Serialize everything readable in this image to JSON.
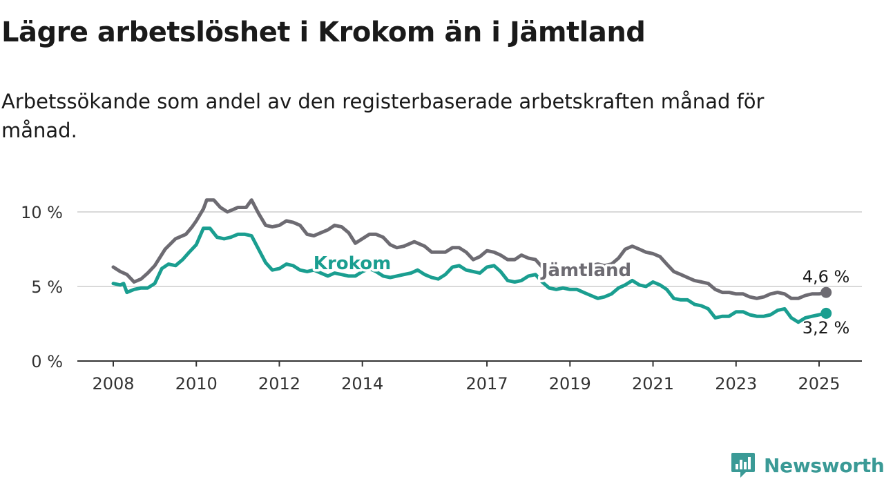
{
  "title": "Lägre arbetslöshet i Krokom än i Jämtland",
  "subtitle": "Arbetssökande som andel av den registerbaserade arbetskraften månad för månad.",
  "brand": "Newsworthy",
  "colors": {
    "krokom": "#1a9e90",
    "jamtland": "#6d6b72",
    "grid": "#d9d9d9",
    "axis": "#333333",
    "brand": "#3a9a96"
  },
  "chart_data": {
    "type": "line",
    "xlim": [
      2008,
      2025.6
    ],
    "ylim": [
      0,
      10
    ],
    "yticks": [
      {
        "value": 0,
        "label": "0 %"
      },
      {
        "value": 5,
        "label": "5 %"
      },
      {
        "value": 10,
        "label": "10 %"
      }
    ],
    "xticks": [
      {
        "value": 2008,
        "label": "2008"
      },
      {
        "value": 2010,
        "label": "2010"
      },
      {
        "value": 2012,
        "label": "2012"
      },
      {
        "value": 2014,
        "label": "2014"
      },
      {
        "value": 2017,
        "label": "2017"
      },
      {
        "value": 2019,
        "label": "2019"
      },
      {
        "value": 2021,
        "label": "2021"
      },
      {
        "value": 2023,
        "label": "2023"
      },
      {
        "value": 2025,
        "label": "2025"
      }
    ],
    "series": [
      {
        "name": "Jämtland",
        "key": "jamtland",
        "end_label": "4,6 %",
        "points": [
          [
            2008.0,
            6.3
          ],
          [
            2008.17,
            6.0
          ],
          [
            2008.33,
            5.8
          ],
          [
            2008.5,
            5.3
          ],
          [
            2008.67,
            5.5
          ],
          [
            2008.83,
            5.9
          ],
          [
            2009.0,
            6.4
          ],
          [
            2009.25,
            7.5
          ],
          [
            2009.5,
            8.2
          ],
          [
            2009.75,
            8.5
          ],
          [
            2009.9,
            9.0
          ],
          [
            2010.0,
            9.4
          ],
          [
            2010.17,
            10.2
          ],
          [
            2010.25,
            10.8
          ],
          [
            2010.42,
            10.8
          ],
          [
            2010.58,
            10.3
          ],
          [
            2010.75,
            10.0
          ],
          [
            2010.92,
            10.2
          ],
          [
            2011.0,
            10.3
          ],
          [
            2011.2,
            10.3
          ],
          [
            2011.33,
            10.8
          ],
          [
            2011.5,
            9.9
          ],
          [
            2011.67,
            9.1
          ],
          [
            2011.83,
            9.0
          ],
          [
            2012.0,
            9.1
          ],
          [
            2012.17,
            9.4
          ],
          [
            2012.33,
            9.3
          ],
          [
            2012.5,
            9.1
          ],
          [
            2012.67,
            8.5
          ],
          [
            2012.83,
            8.4
          ],
          [
            2013.0,
            8.6
          ],
          [
            2013.17,
            8.8
          ],
          [
            2013.33,
            9.1
          ],
          [
            2013.5,
            9.0
          ],
          [
            2013.67,
            8.6
          ],
          [
            2013.83,
            7.9
          ],
          [
            2014.0,
            8.2
          ],
          [
            2014.17,
            8.5
          ],
          [
            2014.33,
            8.5
          ],
          [
            2014.5,
            8.3
          ],
          [
            2014.67,
            7.8
          ],
          [
            2014.83,
            7.6
          ],
          [
            2015.0,
            7.7
          ],
          [
            2015.25,
            8.0
          ],
          [
            2015.5,
            7.7
          ],
          [
            2015.67,
            7.3
          ],
          [
            2015.83,
            7.3
          ],
          [
            2016.0,
            7.3
          ],
          [
            2016.17,
            7.6
          ],
          [
            2016.33,
            7.6
          ],
          [
            2016.5,
            7.3
          ],
          [
            2016.67,
            6.8
          ],
          [
            2016.83,
            7.0
          ],
          [
            2017.0,
            7.4
          ],
          [
            2017.17,
            7.3
          ],
          [
            2017.33,
            7.1
          ],
          [
            2017.5,
            6.8
          ],
          [
            2017.67,
            6.8
          ],
          [
            2017.83,
            7.1
          ],
          [
            2018.0,
            6.9
          ],
          [
            2018.17,
            6.8
          ],
          [
            2018.33,
            6.3
          ],
          [
            2018.5,
            6.2
          ],
          [
            2018.67,
            6.0
          ],
          [
            2018.83,
            6.0
          ],
          [
            2019.0,
            6.1
          ],
          [
            2019.17,
            6.2
          ],
          [
            2019.33,
            6.3
          ],
          [
            2019.5,
            6.4
          ],
          [
            2019.67,
            6.5
          ],
          [
            2019.83,
            6.4
          ],
          [
            2020.0,
            6.5
          ],
          [
            2020.17,
            6.9
          ],
          [
            2020.33,
            7.5
          ],
          [
            2020.5,
            7.7
          ],
          [
            2020.67,
            7.5
          ],
          [
            2020.83,
            7.3
          ],
          [
            2021.0,
            7.2
          ],
          [
            2021.17,
            7.0
          ],
          [
            2021.33,
            6.5
          ],
          [
            2021.5,
            6.0
          ],
          [
            2021.67,
            5.8
          ],
          [
            2021.83,
            5.6
          ],
          [
            2022.0,
            5.4
          ],
          [
            2022.17,
            5.3
          ],
          [
            2022.33,
            5.2
          ],
          [
            2022.5,
            4.8
          ],
          [
            2022.67,
            4.6
          ],
          [
            2022.83,
            4.6
          ],
          [
            2023.0,
            4.5
          ],
          [
            2023.17,
            4.5
          ],
          [
            2023.33,
            4.3
          ],
          [
            2023.5,
            4.2
          ],
          [
            2023.67,
            4.3
          ],
          [
            2023.83,
            4.5
          ],
          [
            2024.0,
            4.6
          ],
          [
            2024.17,
            4.5
          ],
          [
            2024.33,
            4.2
          ],
          [
            2024.5,
            4.2
          ],
          [
            2024.67,
            4.4
          ],
          [
            2024.83,
            4.5
          ],
          [
            2025.0,
            4.5
          ],
          [
            2025.17,
            4.6
          ]
        ]
      },
      {
        "name": "Krokom",
        "key": "krokom",
        "end_label": "3,2 %",
        "points": [
          [
            2008.0,
            5.2
          ],
          [
            2008.17,
            5.1
          ],
          [
            2008.25,
            5.2
          ],
          [
            2008.33,
            4.6
          ],
          [
            2008.5,
            4.8
          ],
          [
            2008.67,
            4.9
          ],
          [
            2008.83,
            4.9
          ],
          [
            2009.0,
            5.2
          ],
          [
            2009.17,
            6.2
          ],
          [
            2009.33,
            6.5
          ],
          [
            2009.5,
            6.4
          ],
          [
            2009.67,
            6.8
          ],
          [
            2009.83,
            7.3
          ],
          [
            2010.0,
            7.8
          ],
          [
            2010.17,
            8.9
          ],
          [
            2010.33,
            8.9
          ],
          [
            2010.5,
            8.3
          ],
          [
            2010.67,
            8.2
          ],
          [
            2010.83,
            8.3
          ],
          [
            2011.0,
            8.5
          ],
          [
            2011.17,
            8.5
          ],
          [
            2011.33,
            8.4
          ],
          [
            2011.5,
            7.5
          ],
          [
            2011.67,
            6.6
          ],
          [
            2011.83,
            6.1
          ],
          [
            2012.0,
            6.2
          ],
          [
            2012.17,
            6.5
          ],
          [
            2012.33,
            6.4
          ],
          [
            2012.5,
            6.1
          ],
          [
            2012.67,
            6.0
          ],
          [
            2012.83,
            6.1
          ],
          [
            2013.0,
            5.9
          ],
          [
            2013.17,
            5.7
          ],
          [
            2013.33,
            5.9
          ],
          [
            2013.5,
            5.8
          ],
          [
            2013.67,
            5.7
          ],
          [
            2013.83,
            5.7
          ],
          [
            2014.0,
            6.0
          ],
          [
            2014.17,
            6.2
          ],
          [
            2014.33,
            6.0
          ],
          [
            2014.5,
            5.7
          ],
          [
            2014.67,
            5.6
          ],
          [
            2014.83,
            5.7
          ],
          [
            2015.0,
            5.8
          ],
          [
            2015.17,
            5.9
          ],
          [
            2015.33,
            6.1
          ],
          [
            2015.5,
            5.8
          ],
          [
            2015.67,
            5.6
          ],
          [
            2015.83,
            5.5
          ],
          [
            2016.0,
            5.8
          ],
          [
            2016.17,
            6.3
          ],
          [
            2016.33,
            6.4
          ],
          [
            2016.5,
            6.1
          ],
          [
            2016.67,
            6.0
          ],
          [
            2016.83,
            5.9
          ],
          [
            2017.0,
            6.3
          ],
          [
            2017.17,
            6.4
          ],
          [
            2017.33,
            6.0
          ],
          [
            2017.5,
            5.4
          ],
          [
            2017.67,
            5.3
          ],
          [
            2017.83,
            5.4
          ],
          [
            2018.0,
            5.7
          ],
          [
            2018.17,
            5.8
          ],
          [
            2018.33,
            5.3
          ],
          [
            2018.5,
            4.9
          ],
          [
            2018.67,
            4.8
          ],
          [
            2018.83,
            4.9
          ],
          [
            2019.0,
            4.8
          ],
          [
            2019.17,
            4.8
          ],
          [
            2019.33,
            4.6
          ],
          [
            2019.5,
            4.4
          ],
          [
            2019.67,
            4.2
          ],
          [
            2019.83,
            4.3
          ],
          [
            2020.0,
            4.5
          ],
          [
            2020.17,
            4.9
          ],
          [
            2020.33,
            5.1
          ],
          [
            2020.5,
            5.4
          ],
          [
            2020.67,
            5.1
          ],
          [
            2020.83,
            5.0
          ],
          [
            2021.0,
            5.3
          ],
          [
            2021.17,
            5.1
          ],
          [
            2021.33,
            4.8
          ],
          [
            2021.5,
            4.2
          ],
          [
            2021.67,
            4.1
          ],
          [
            2021.83,
            4.1
          ],
          [
            2022.0,
            3.8
          ],
          [
            2022.17,
            3.7
          ],
          [
            2022.33,
            3.5
          ],
          [
            2022.5,
            2.9
          ],
          [
            2022.67,
            3.0
          ],
          [
            2022.83,
            3.0
          ],
          [
            2023.0,
            3.3
          ],
          [
            2023.17,
            3.3
          ],
          [
            2023.33,
            3.1
          ],
          [
            2023.5,
            3.0
          ],
          [
            2023.67,
            3.0
          ],
          [
            2023.83,
            3.1
          ],
          [
            2024.0,
            3.4
          ],
          [
            2024.17,
            3.5
          ],
          [
            2024.33,
            2.9
          ],
          [
            2024.5,
            2.6
          ],
          [
            2024.67,
            2.9
          ],
          [
            2024.83,
            3.0
          ],
          [
            2025.0,
            3.1
          ],
          [
            2025.17,
            3.2
          ]
        ]
      }
    ]
  }
}
